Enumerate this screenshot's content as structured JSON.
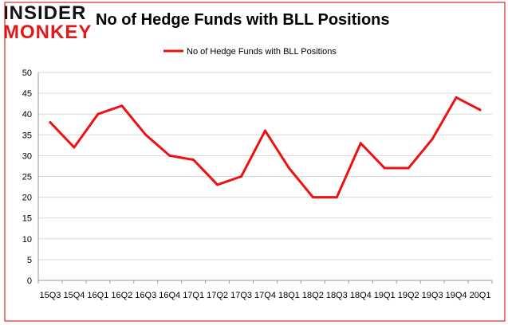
{
  "brand": {
    "logo_line1": "INSIDER",
    "logo_line2": "MONKEY"
  },
  "colors": {
    "series": "#ee1111",
    "grid": "#d9d9d9",
    "border": "#cc0000",
    "axis": "#999999"
  },
  "chart_data": {
    "type": "line",
    "title": "No of Hedge Funds with BLL Positions",
    "xlabel": "",
    "ylabel": "",
    "categories": [
      "15Q3",
      "15Q4",
      "16Q1",
      "16Q2",
      "16Q3",
      "16Q4",
      "17Q1",
      "17Q2",
      "17Q3",
      "17Q4",
      "18Q1",
      "18Q2",
      "18Q3",
      "18Q4",
      "19Q1",
      "19Q2",
      "19Q3",
      "19Q4",
      "20Q1"
    ],
    "series": [
      {
        "name": "No of Hedge Funds with BLL Positions",
        "values": [
          38,
          32,
          40,
          42,
          35,
          30,
          29,
          23,
          25,
          36,
          27,
          20,
          20,
          33,
          27,
          27,
          34,
          44,
          41
        ]
      }
    ],
    "ylim": [
      0,
      50
    ],
    "yticks": [
      0,
      5,
      10,
      15,
      20,
      25,
      30,
      35,
      40,
      45,
      50
    ],
    "grid": true,
    "legend_position": "top-center"
  }
}
